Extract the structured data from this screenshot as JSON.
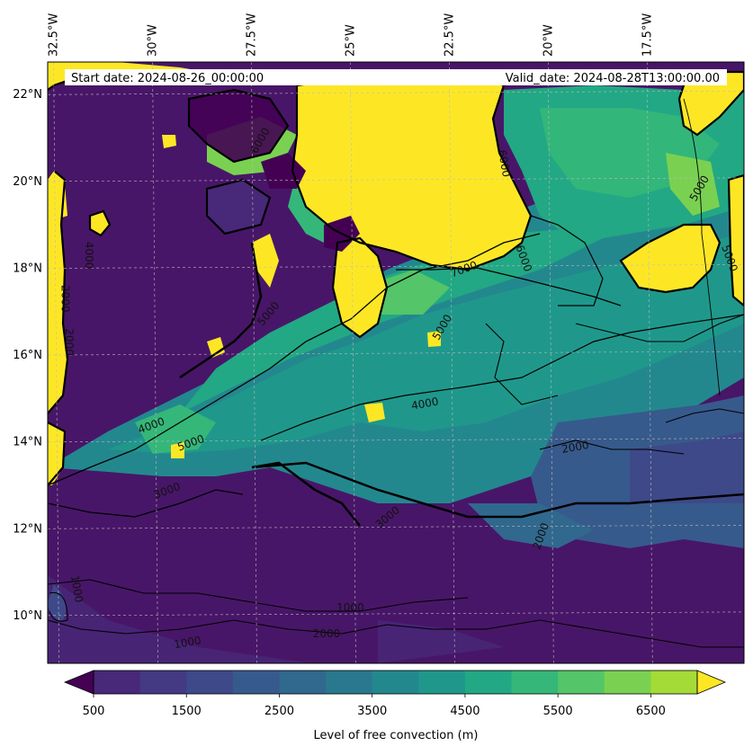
{
  "map": {
    "start_date": "Start date: 2024-08-26_00:00:00",
    "valid_date": "Valid_date: 2024-08-28T13:00:00.00",
    "lon_labels": [
      {
        "label": "32.5°W",
        "value": -32.5
      },
      {
        "label": "30°W",
        "value": -30
      },
      {
        "label": "27.5°W",
        "value": -27.5
      },
      {
        "label": "25°W",
        "value": -25
      },
      {
        "label": "22.5°W",
        "value": -22.5
      },
      {
        "label": "20°W",
        "value": -20
      },
      {
        "label": "17.5°W",
        "value": -17.5
      }
    ],
    "lat_labels": [
      {
        "label": "22°N",
        "value": 22
      },
      {
        "label": "20°N",
        "value": 20
      },
      {
        "label": "18°N",
        "value": 18
      },
      {
        "label": "16°N",
        "value": 16
      },
      {
        "label": "14°N",
        "value": 14
      },
      {
        "label": "12°N",
        "value": 12
      },
      {
        "label": "10°N",
        "value": 10
      }
    ],
    "extent": {
      "lon_min": -32.65,
      "lon_max": -15.05,
      "lat_min": 8.9,
      "lat_max": 22.75
    },
    "contour_labels": [
      {
        "text": "6000",
        "lon": -27.2,
        "lat": 20.9,
        "rot": -60
      },
      {
        "text": "7000",
        "lon": -22.1,
        "lat": 17.9,
        "rot": -20
      },
      {
        "text": "6000",
        "lon": -21.2,
        "lat": 20.4,
        "rot": 80
      },
      {
        "text": "6000",
        "lon": -20.7,
        "lat": 18.2,
        "rot": 70
      },
      {
        "text": "5000",
        "lon": -16.1,
        "lat": 19.8,
        "rot": -60
      },
      {
        "text": "5000",
        "lon": -15.5,
        "lat": 18.2,
        "rot": 70
      },
      {
        "text": "5000",
        "lon": -27.0,
        "lat": 16.9,
        "rot": -50
      },
      {
        "text": "5000",
        "lon": -22.6,
        "lat": 16.6,
        "rot": -60
      },
      {
        "text": "4000",
        "lon": -23.1,
        "lat": 14.8,
        "rot": -10
      },
      {
        "text": "5000",
        "lon": -29.0,
        "lat": 13.9,
        "rot": -20
      },
      {
        "text": "4000",
        "lon": -30.0,
        "lat": 14.3,
        "rot": -20
      },
      {
        "text": "3000",
        "lon": -29.6,
        "lat": 12.8,
        "rot": -20
      },
      {
        "text": "2000",
        "lon": -19.3,
        "lat": 13.8,
        "rot": -10
      },
      {
        "text": "3000",
        "lon": -24.0,
        "lat": 12.2,
        "rot": -40
      },
      {
        "text": "2000",
        "lon": -32.2,
        "lat": 16.3,
        "rot": 90
      },
      {
        "text": "2000",
        "lon": -32.3,
        "lat": 17.3,
        "rot": 90
      },
      {
        "text": "4000",
        "lon": -31.7,
        "lat": 18.3,
        "rot": 90
      },
      {
        "text": "2000",
        "lon": -20.1,
        "lat": 11.8,
        "rot": -70
      },
      {
        "text": "1000",
        "lon": -32.0,
        "lat": 10.6,
        "rot": 80
      },
      {
        "text": "1000",
        "lon": -25.0,
        "lat": 10.1,
        "rot": 0
      },
      {
        "text": "2000",
        "lon": -25.6,
        "lat": 9.5,
        "rot": 0
      },
      {
        "text": "1000",
        "lon": -29.1,
        "lat": 9.3,
        "rot": -10
      }
    ]
  },
  "colorbar": {
    "label": "Level of free convection (m)",
    "levels": [
      500,
      1000,
      1500,
      2000,
      2500,
      3000,
      3500,
      4000,
      4500,
      5000,
      5500,
      6000,
      6500,
      7000
    ],
    "tick_labels": [
      "500",
      "1500",
      "2500",
      "3500",
      "4500",
      "5500",
      "6500"
    ],
    "tick_values": [
      500,
      1500,
      2500,
      3500,
      4500,
      5500,
      6500
    ],
    "under_color": "#440154",
    "over_color": "#fde725",
    "colors": [
      "#481668",
      "#482878",
      "#443983",
      "#3e4989",
      "#375a8c",
      "#31688e",
      "#2a788e",
      "#23888e",
      "#1f988b",
      "#22a884",
      "#35b779",
      "#54c568",
      "#7ad151",
      "#a5db36",
      "#d2e21b"
    ]
  }
}
